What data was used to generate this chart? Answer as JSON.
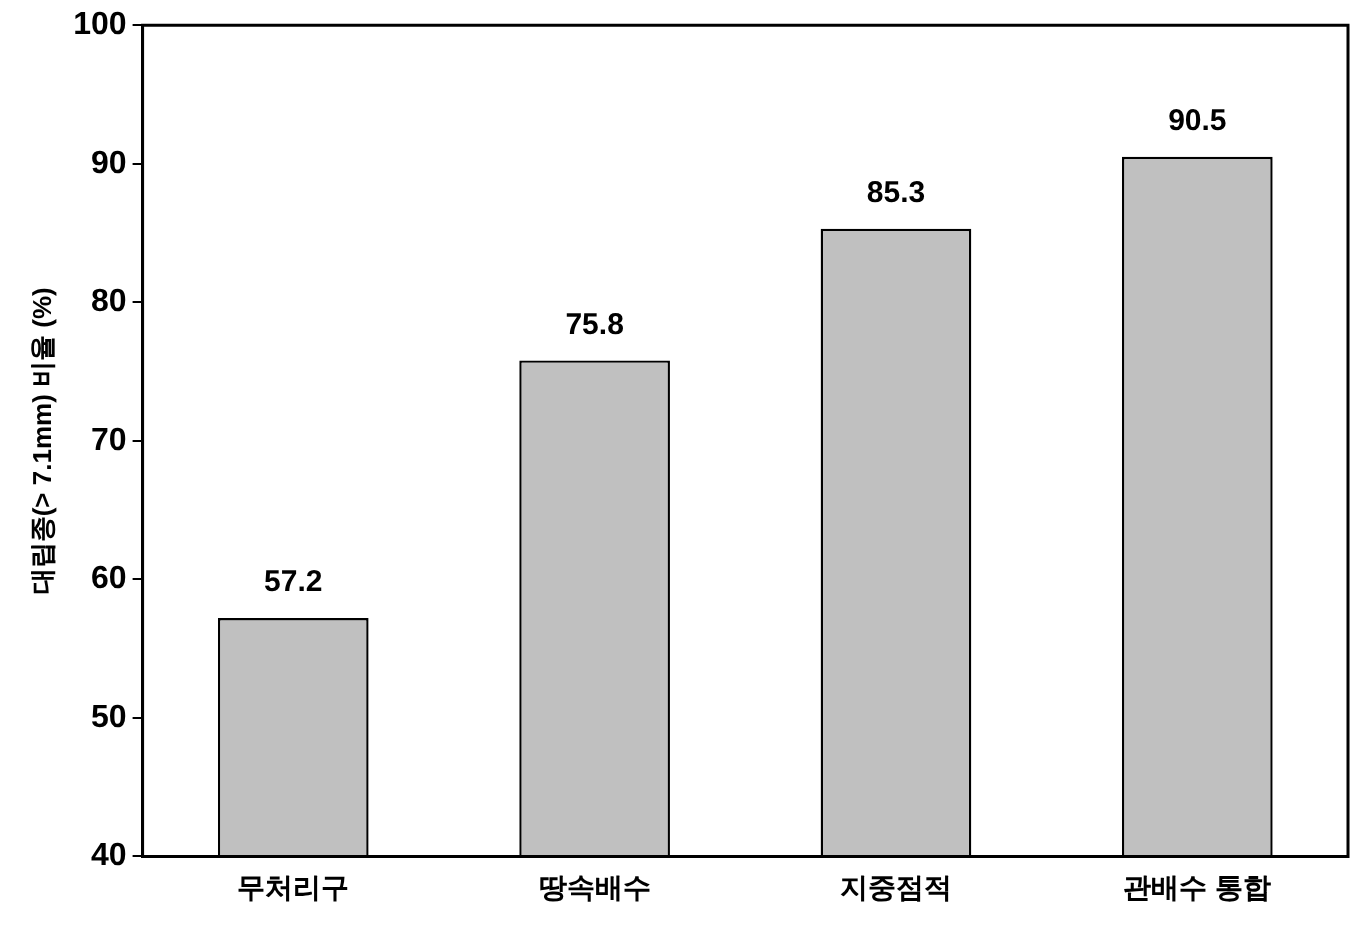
{
  "chart_data": {
    "type": "bar",
    "ylabel": "대립종(> 7.1mm) 비율 (%)",
    "categories": [
      "무처리구",
      "땅속배수",
      "지중점적",
      "관배수 통합"
    ],
    "values": [
      57.2,
      75.8,
      85.3,
      90.5
    ],
    "color": "#c0c0c0",
    "ylim": [
      40,
      100
    ],
    "yticks": [
      40,
      50,
      60,
      70,
      80,
      90,
      100
    ],
    "grid": false,
    "legend": false,
    "data_labels": true
  }
}
